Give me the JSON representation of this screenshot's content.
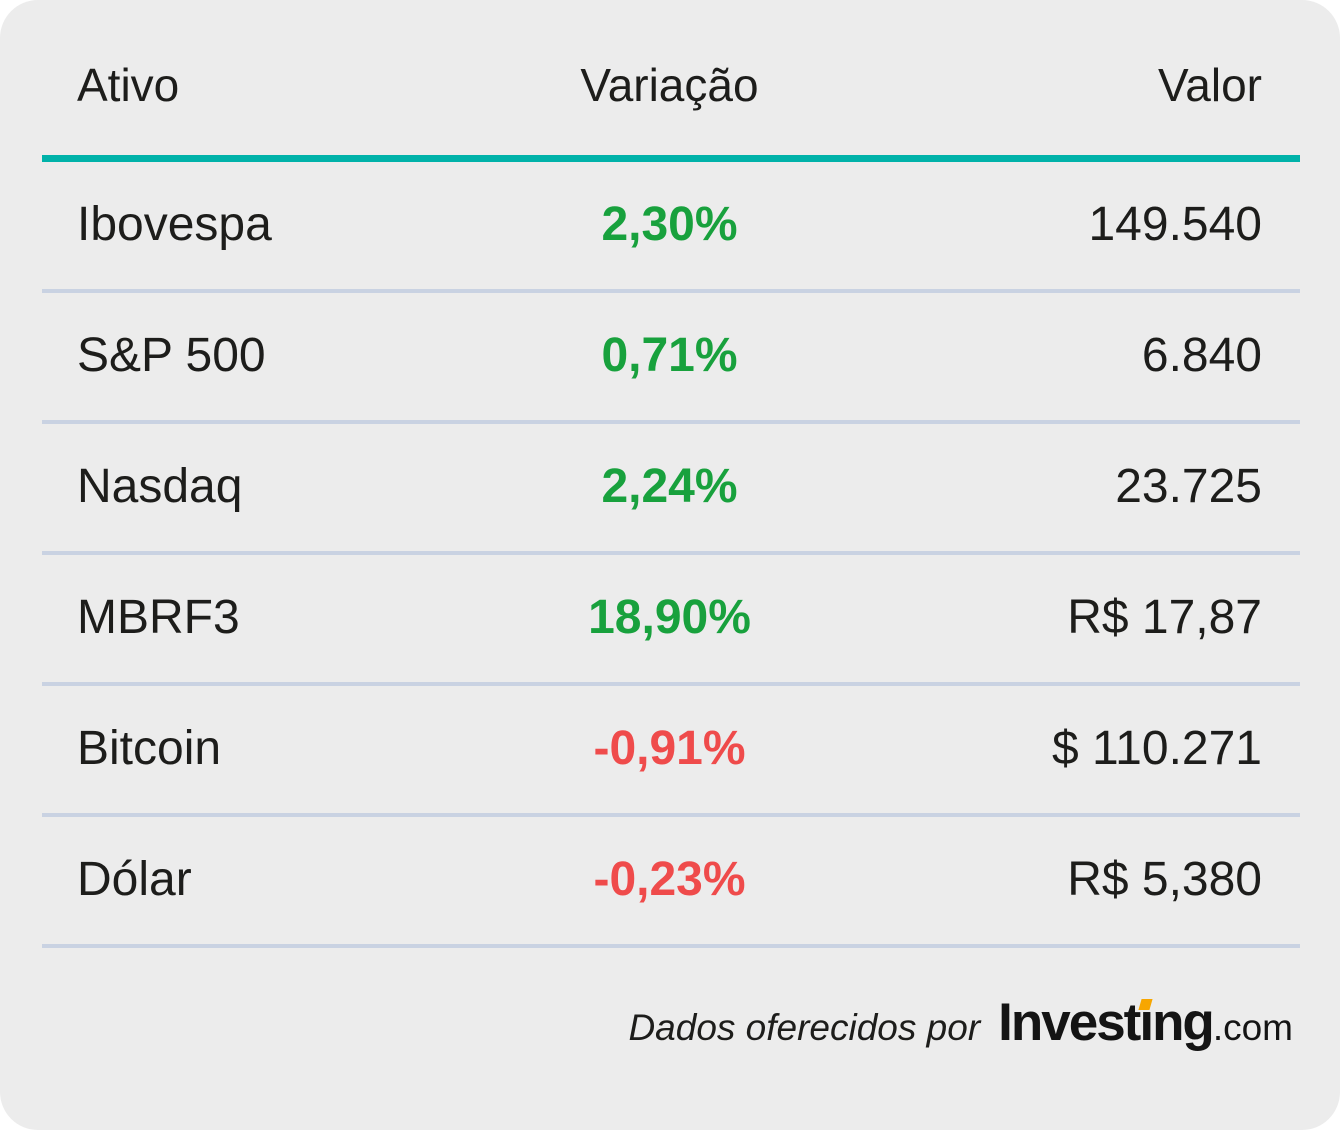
{
  "chart_data": {
    "type": "table",
    "columns": [
      "Ativo",
      "Variação",
      "Valor"
    ],
    "rows": [
      {
        "ativo": "Ibovespa",
        "variacao": "2,30%",
        "valor": "149.540",
        "direction": "up"
      },
      {
        "ativo": "S&P 500",
        "variacao": "0,71%",
        "valor": "6.840",
        "direction": "up"
      },
      {
        "ativo": "Nasdaq",
        "variacao": "2,24%",
        "valor": "23.725",
        "direction": "up"
      },
      {
        "ativo": "MBRF3",
        "variacao": "18,90%",
        "valor": "R$ 17,87",
        "direction": "up"
      },
      {
        "ativo": "Bitcoin",
        "variacao": "-0,91%",
        "valor": "$ 110.271",
        "direction": "down"
      },
      {
        "ativo": "Dólar",
        "variacao": "-0,23%",
        "valor": "R$ 5,380",
        "direction": "down"
      }
    ],
    "source_note": "Dados oferecidos por Investing.com",
    "layout_hints": {
      "grid": "row dividers only",
      "header_rule": "teal",
      "value_alignment": "right"
    }
  },
  "footer": {
    "attribution": "Dados oferecidos por",
    "logo": {
      "prefix": "Invest",
      "dotless_i": "ı",
      "suffix": "ng",
      "tld": ".com"
    }
  },
  "colors": {
    "positive": "#18a13d",
    "negative": "#ef4b4b",
    "accent_teal": "#00b2a9",
    "divider": "#c9d2e2",
    "card_background": "#ececec",
    "logo_orange": "#f7a600"
  }
}
